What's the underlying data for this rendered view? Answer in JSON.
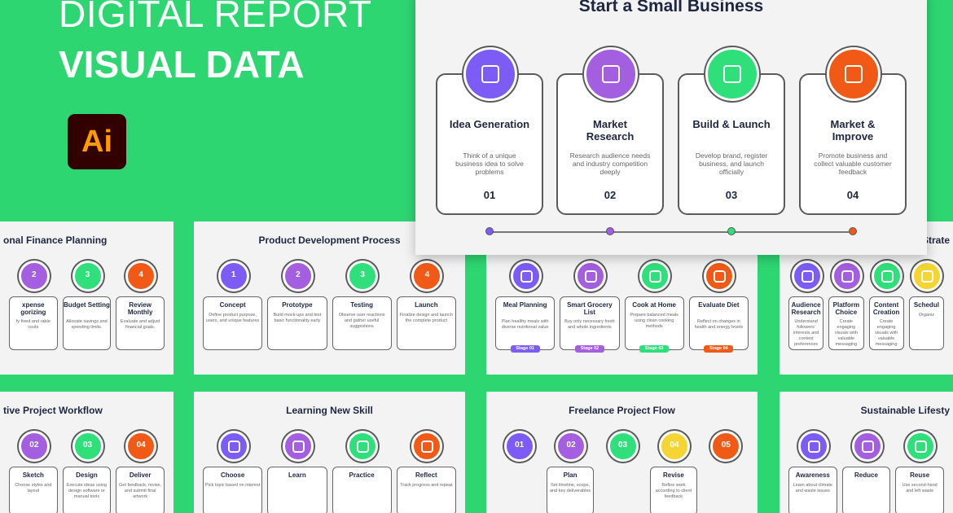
{
  "header": {
    "line1": "DIGITAL REPORT",
    "line2": "VISUAL DATA",
    "logo": "Ai"
  },
  "main": {
    "title": "Start a Small Business",
    "steps": [
      {
        "label": "Idea Generation",
        "desc": "Think of a unique business idea to solve problems",
        "num": "01",
        "color": "#7d5cf5"
      },
      {
        "label": "Market Research",
        "desc": "Research audience needs and industry competition deeply",
        "num": "02",
        "color": "#a45ee0"
      },
      {
        "label": "Build & Launch",
        "desc": "Develop brand, register business, and launch officially",
        "num": "03",
        "color": "#2fe07a"
      },
      {
        "label": "Market & Improve",
        "desc": "Promote business and collect valuable customer feedback",
        "num": "04",
        "color": "#f15a16"
      }
    ]
  },
  "slides": [
    {
      "title": "onal Finance Planning",
      "items": [
        {
          "num": "2",
          "label": "xpense gorizing",
          "desc": "fy fixed and rable costs",
          "color": "#a45ee0"
        },
        {
          "num": "3",
          "label": "Budget Setting",
          "desc": "Allocate savings and spending limits.",
          "color": "#2fe07a"
        },
        {
          "num": "4",
          "label": "Review Monthly",
          "desc": "Evaluate and adjust financial goals.",
          "color": "#f15a16"
        }
      ]
    },
    {
      "title": "Product Development Process",
      "items": [
        {
          "num": "1",
          "label": "Concept",
          "desc": "Define product purpose, users, and unique features",
          "color": "#7d5cf5"
        },
        {
          "num": "2",
          "label": "Prototype",
          "desc": "Build mock-ups and test basic functionality early",
          "color": "#a45ee0"
        },
        {
          "num": "3",
          "label": "Testing",
          "desc": "Observe user reactions and gather useful suggestions",
          "color": "#2fe07a"
        },
        {
          "num": "4",
          "label": "Launch",
          "desc": "Finalize design and launch the complete product",
          "color": "#f15a16"
        }
      ]
    },
    {
      "items": [
        {
          "num": "Stage 01",
          "label": "Meal Planning",
          "desc": "Plan healthy meals with diverse nutritional value",
          "color": "#7d5cf5"
        },
        {
          "num": "Stage 02",
          "label": "Smart Grocery List",
          "desc": "Buy only necessary fresh and whole ingredients",
          "color": "#a45ee0"
        },
        {
          "num": "Stage 03",
          "label": "Cook at Home",
          "desc": "Prepare balanced meals using clean cooking methods",
          "color": "#2fe07a"
        },
        {
          "num": "Stage 04",
          "label": "Evaluate Diet",
          "desc": "Reflect on changes in health and energy levels",
          "color": "#f15a16"
        }
      ]
    },
    {
      "title": "Strate",
      "items": [
        {
          "label": "Audience Research",
          "desc": "Understand followers' interests and content preferences",
          "color": "#7d5cf5"
        },
        {
          "label": "Platform Choice",
          "desc": "Create engaging visuals with valuable messaging",
          "color": "#a45ee0"
        },
        {
          "label": "Content Creation",
          "desc": "Create engaging visuals with valuable messaging",
          "color": "#2fe07a"
        },
        {
          "label": "Schedul",
          "desc": "Organiz",
          "color": "#f5d533"
        }
      ]
    },
    {
      "title": "tive Project Workflow",
      "items": [
        {
          "num": "02",
          "label": "Sketch",
          "desc": "Choose styles and layout",
          "color": "#a45ee0"
        },
        {
          "num": "03",
          "label": "Design",
          "desc": "Execute ideas using design software or manual tools",
          "color": "#2fe07a"
        },
        {
          "num": "04",
          "label": "Deliver",
          "desc": "Get feedback, revise, and submit final artwork",
          "color": "#f15a16"
        }
      ]
    },
    {
      "title": "Learning New Skill",
      "items": [
        {
          "label": "Choose",
          "desc": "Pick topic based on interest",
          "color": "#7d5cf5"
        },
        {
          "label": "Learn",
          "color": "#a45ee0"
        },
        {
          "label": "Practice",
          "color": "#2fe07a"
        },
        {
          "label": "Reflect",
          "desc": "Track progress and repeat",
          "color": "#f15a16"
        }
      ]
    },
    {
      "title": "Freelance Project Flow",
      "items": [
        {
          "num": "01",
          "color": "#7d5cf5"
        },
        {
          "num": "02",
          "label": "Plan",
          "desc": "Set timeline, scope, and key deliverables",
          "color": "#a45ee0"
        },
        {
          "num": "03",
          "color": "#2fe07a"
        },
        {
          "num": "04",
          "label": "Revise",
          "desc": "Refine work according to client feedback",
          "color": "#f5d533"
        },
        {
          "num": "05",
          "color": "#f15a16"
        }
      ]
    },
    {
      "title": "Sustainable Lifesty",
      "items": [
        {
          "label": "Awareness",
          "desc": "Learn about climate and waste issues",
          "color": "#7d5cf5"
        },
        {
          "label": "Reduce",
          "color": "#a45ee0"
        },
        {
          "label": "Reuse",
          "desc": "Use second-hand and left waste",
          "color": "#2fe07a"
        }
      ]
    }
  ]
}
